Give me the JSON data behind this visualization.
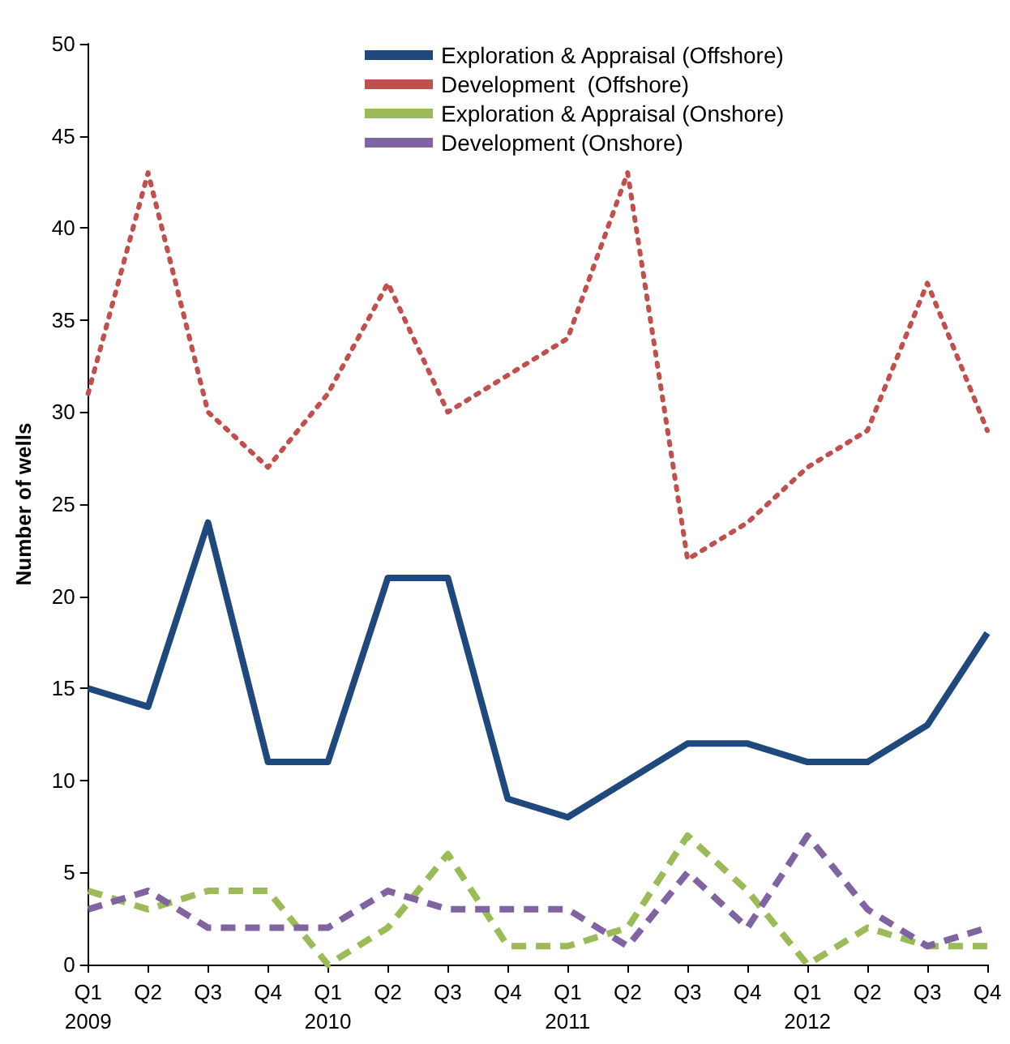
{
  "chart_data": {
    "type": "line",
    "ylabel": "Number of wells",
    "categories": [
      "Q1\n2009",
      "Q2",
      "Q3",
      "Q4",
      "Q1\n2010",
      "Q2",
      "Q3",
      "Q4",
      "Q1\n2011",
      "Q2",
      "Q3",
      "Q4",
      "Q1\n2012",
      "Q2",
      "Q3",
      "Q4"
    ],
    "series": [
      {
        "name": "Exploration & Appraisal (Offshore)",
        "color": "#1f497d",
        "line_style": "solid",
        "values": [
          15,
          14,
          24,
          11,
          11,
          21,
          21,
          9,
          8,
          10,
          12,
          12,
          11,
          11,
          13,
          18
        ]
      },
      {
        "name": "Development  (Offshore)",
        "color": "#c0504d",
        "line_style": "dotted",
        "values": [
          31,
          43,
          30,
          27,
          31,
          37,
          30,
          32,
          34,
          43,
          22,
          24,
          27,
          29,
          37,
          29
        ]
      },
      {
        "name": "Exploration & Appraisal (Onshore)",
        "color": "#9bbb59",
        "line_style": "dashed",
        "values": [
          4,
          3,
          4,
          4,
          0,
          2,
          6,
          1,
          1,
          2,
          7,
          4,
          0,
          2,
          1,
          1
        ]
      },
      {
        "name": "Development (Onshore)",
        "color": "#8064a2",
        "line_style": "dashed",
        "values": [
          3,
          4,
          2,
          2,
          2,
          4,
          3,
          3,
          3,
          1,
          5,
          2,
          7,
          3,
          1,
          2
        ]
      }
    ],
    "ylim": [
      0,
      50
    ],
    "yticks": [
      0,
      5,
      10,
      15,
      20,
      25,
      30,
      35,
      40,
      45,
      50
    ],
    "grid": false,
    "legend": "top",
    "marker": "none"
  }
}
